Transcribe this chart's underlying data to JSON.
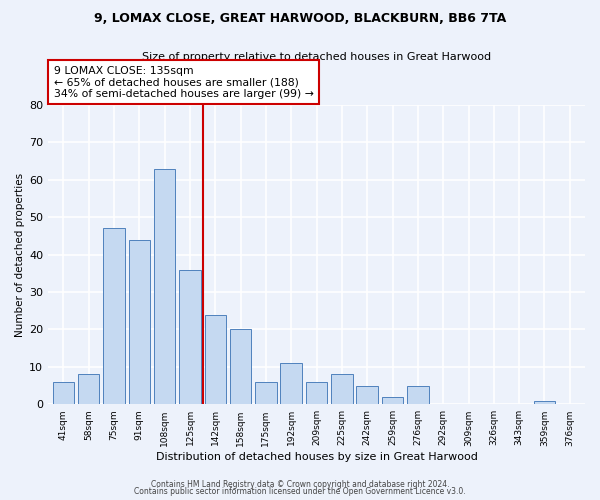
{
  "title": "9, LOMAX CLOSE, GREAT HARWOOD, BLACKBURN, BB6 7TA",
  "subtitle": "Size of property relative to detached houses in Great Harwood",
  "xlabel": "Distribution of detached houses by size in Great Harwood",
  "ylabel": "Number of detached properties",
  "categories": [
    "41sqm",
    "58sqm",
    "75sqm",
    "91sqm",
    "108sqm",
    "125sqm",
    "142sqm",
    "158sqm",
    "175sqm",
    "192sqm",
    "209sqm",
    "225sqm",
    "242sqm",
    "259sqm",
    "276sqm",
    "292sqm",
    "309sqm",
    "326sqm",
    "343sqm",
    "359sqm",
    "376sqm"
  ],
  "values": [
    6,
    8,
    47,
    44,
    63,
    36,
    24,
    20,
    6,
    11,
    6,
    8,
    5,
    2,
    5,
    0,
    0,
    0,
    0,
    1,
    0
  ],
  "bar_color": "#c5d9f1",
  "bar_edge_color": "#4f81bd",
  "vline_x": 5.5,
  "vline_color": "#cc0000",
  "annotation_line1": "9 LOMAX CLOSE: 135sqm",
  "annotation_line2": "← 65% of detached houses are smaller (188)",
  "annotation_line3": "34% of semi-detached houses are larger (99) →",
  "annotation_box_color": "#ffffff",
  "annotation_box_edge": "#cc0000",
  "ylim": [
    0,
    80
  ],
  "yticks": [
    0,
    10,
    20,
    30,
    40,
    50,
    60,
    70,
    80
  ],
  "footer1": "Contains HM Land Registry data © Crown copyright and database right 2024.",
  "footer2": "Contains public sector information licensed under the Open Government Licence v3.0.",
  "background_color": "#edf2fb"
}
